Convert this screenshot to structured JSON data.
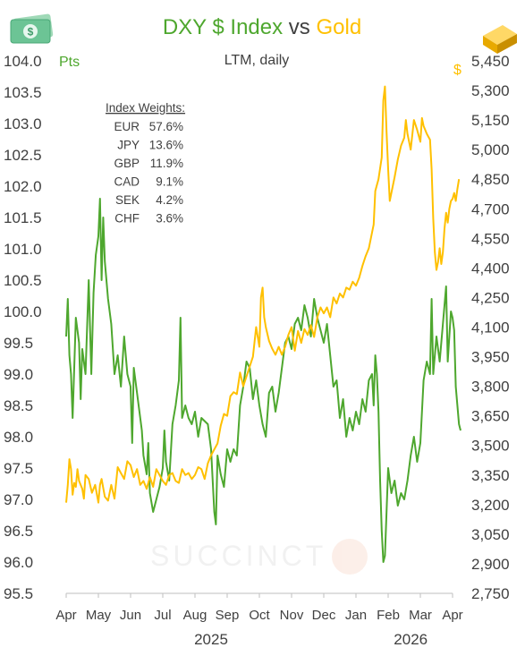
{
  "header": {
    "title_part1": "DXY $ Index",
    "title_vs": "vs",
    "title_part2": "Gold",
    "subtitle": "LTM, daily",
    "left_unit": "Pts",
    "right_unit": "$",
    "watermark": "SUCCINCT",
    "money_icon": "dollar-bill-icon",
    "gold_icon": "gold-bar-icon"
  },
  "weights": {
    "title": "Index Weights:",
    "rows": [
      {
        "ccy": "EUR",
        "pct": "57.6%"
      },
      {
        "ccy": "JPY",
        "pct": "13.6%"
      },
      {
        "ccy": "GBP",
        "pct": "11.9%"
      },
      {
        "ccy": "CAD",
        "pct": "9.1%"
      },
      {
        "ccy": "SEK",
        "pct": "4.2%"
      },
      {
        "ccy": "CHF",
        "pct": "3.6%"
      }
    ]
  },
  "colors": {
    "dxy": "#4ea72e",
    "gold": "#ffc000",
    "text": "#404040",
    "axis": "#bfbfbf"
  },
  "chart_data": {
    "type": "line",
    "title": "DXY $ Index vs Gold",
    "subtitle": "LTM, daily",
    "x_unit": "month index (0 = Apr 2025 … 12 = Apr 2026)",
    "x_ticks": [
      "Apr",
      "May",
      "Jun",
      "Jul",
      "Aug",
      "Sep",
      "Oct",
      "Nov",
      "Dec",
      "Jan",
      "Feb",
      "Mar",
      "Apr"
    ],
    "year_labels": [
      {
        "at": 4.5,
        "label": "2025"
      },
      {
        "at": 10.7,
        "label": "2026"
      }
    ],
    "y_left": {
      "label": "Pts",
      "min": 95.5,
      "max": 104.0,
      "step": 0.5,
      "ticks": [
        "95.5",
        "96.0",
        "96.5",
        "97.0",
        "97.5",
        "98.0",
        "98.5",
        "99.0",
        "99.5",
        "100.0",
        "100.5",
        "101.0",
        "101.5",
        "102.0",
        "102.5",
        "103.0",
        "103.5",
        "104.0"
      ]
    },
    "y_right": {
      "label": "$",
      "min": 2750,
      "max": 5450,
      "step": 150,
      "ticks": [
        "2,750",
        "2,900",
        "3,050",
        "3,200",
        "3,350",
        "3,500",
        "3,650",
        "3,800",
        "3,950",
        "4,100",
        "4,250",
        "4,400",
        "4,550",
        "4,700",
        "4,850",
        "5,000",
        "5,150",
        "5,300",
        "5,450"
      ]
    },
    "series": [
      {
        "name": "DXY $ Index",
        "axis": "left",
        "color": "#4ea72e",
        "points": [
          [
            0.0,
            99.6
          ],
          [
            0.05,
            100.2
          ],
          [
            0.1,
            99.3
          ],
          [
            0.15,
            99.0
          ],
          [
            0.2,
            98.3
          ],
          [
            0.3,
            99.9
          ],
          [
            0.4,
            99.5
          ],
          [
            0.45,
            98.6
          ],
          [
            0.5,
            99.4
          ],
          [
            0.6,
            99.0
          ],
          [
            0.7,
            100.5
          ],
          [
            0.78,
            99.0
          ],
          [
            0.85,
            100.3
          ],
          [
            0.92,
            100.9
          ],
          [
            1.0,
            101.2
          ],
          [
            1.05,
            101.8
          ],
          [
            1.1,
            100.5
          ],
          [
            1.15,
            101.5
          ],
          [
            1.2,
            100.8
          ],
          [
            1.3,
            100.2
          ],
          [
            1.4,
            99.8
          ],
          [
            1.5,
            99.0
          ],
          [
            1.6,
            99.3
          ],
          [
            1.7,
            98.8
          ],
          [
            1.8,
            99.6
          ],
          [
            1.9,
            99.0
          ],
          [
            2.0,
            98.8
          ],
          [
            2.05,
            97.9
          ],
          [
            2.1,
            99.1
          ],
          [
            2.2,
            98.7
          ],
          [
            2.35,
            98.1
          ],
          [
            2.4,
            97.7
          ],
          [
            2.5,
            97.4
          ],
          [
            2.55,
            97.9
          ],
          [
            2.6,
            97.1
          ],
          [
            2.7,
            96.8
          ],
          [
            2.8,
            97.0
          ],
          [
            2.9,
            97.2
          ],
          [
            3.0,
            97.5
          ],
          [
            3.05,
            98.1
          ],
          [
            3.1,
            97.6
          ],
          [
            3.2,
            97.3
          ],
          [
            3.3,
            98.2
          ],
          [
            3.4,
            98.5
          ],
          [
            3.5,
            98.9
          ],
          [
            3.55,
            99.9
          ],
          [
            3.6,
            98.3
          ],
          [
            3.7,
            98.5
          ],
          [
            3.8,
            98.3
          ],
          [
            3.9,
            98.2
          ],
          [
            4.0,
            98.4
          ],
          [
            4.1,
            98.0
          ],
          [
            4.2,
            98.3
          ],
          [
            4.4,
            98.2
          ],
          [
            4.5,
            97.8
          ],
          [
            4.6,
            96.8
          ],
          [
            4.65,
            96.6
          ],
          [
            4.7,
            97.7
          ],
          [
            4.8,
            97.4
          ],
          [
            4.9,
            97.2
          ],
          [
            5.0,
            97.8
          ],
          [
            5.1,
            97.6
          ],
          [
            5.2,
            97.8
          ],
          [
            5.3,
            97.7
          ],
          [
            5.4,
            98.5
          ],
          [
            5.5,
            98.8
          ],
          [
            5.6,
            99.2
          ],
          [
            5.7,
            99.1
          ],
          [
            5.8,
            98.6
          ],
          [
            5.9,
            98.9
          ],
          [
            6.0,
            98.5
          ],
          [
            6.1,
            98.2
          ],
          [
            6.2,
            98.0
          ],
          [
            6.3,
            98.7
          ],
          [
            6.4,
            98.8
          ],
          [
            6.5,
            98.4
          ],
          [
            6.6,
            98.7
          ],
          [
            6.7,
            99.1
          ],
          [
            6.8,
            99.5
          ],
          [
            6.9,
            99.6
          ],
          [
            7.0,
            99.4
          ],
          [
            7.1,
            99.8
          ],
          [
            7.2,
            99.9
          ],
          [
            7.3,
            99.7
          ],
          [
            7.4,
            100.1
          ],
          [
            7.5,
            99.9
          ],
          [
            7.6,
            99.6
          ],
          [
            7.7,
            100.2
          ],
          [
            7.8,
            99.9
          ],
          [
            7.9,
            99.7
          ],
          [
            8.0,
            99.5
          ],
          [
            8.1,
            99.8
          ],
          [
            8.2,
            99.3
          ],
          [
            8.3,
            98.8
          ],
          [
            8.4,
            98.9
          ],
          [
            8.5,
            98.3
          ],
          [
            8.6,
            98.6
          ],
          [
            8.7,
            98.0
          ],
          [
            8.8,
            98.3
          ],
          [
            8.9,
            98.1
          ],
          [
            9.0,
            98.4
          ],
          [
            9.1,
            98.2
          ],
          [
            9.2,
            98.6
          ],
          [
            9.3,
            98.4
          ],
          [
            9.4,
            98.9
          ],
          [
            9.5,
            99.0
          ],
          [
            9.55,
            98.5
          ],
          [
            9.6,
            99.3
          ],
          [
            9.65,
            99.0
          ],
          [
            9.7,
            98.4
          ],
          [
            9.75,
            97.3
          ],
          [
            9.8,
            96.5
          ],
          [
            9.85,
            96.0
          ],
          [
            9.9,
            96.1
          ],
          [
            9.95,
            96.8
          ],
          [
            10.0,
            97.5
          ],
          [
            10.1,
            97.1
          ],
          [
            10.2,
            97.3
          ],
          [
            10.3,
            96.9
          ],
          [
            10.4,
            97.1
          ],
          [
            10.5,
            97.0
          ],
          [
            10.6,
            97.3
          ],
          [
            10.7,
            97.7
          ],
          [
            10.8,
            98.0
          ],
          [
            10.9,
            97.6
          ],
          [
            11.0,
            97.9
          ],
          [
            11.1,
            98.9
          ],
          [
            11.2,
            99.2
          ],
          [
            11.3,
            99.0
          ],
          [
            11.35,
            100.2
          ],
          [
            11.4,
            99.0
          ],
          [
            11.5,
            99.6
          ],
          [
            11.6,
            99.2
          ],
          [
            11.7,
            99.8
          ],
          [
            11.75,
            100.1
          ],
          [
            11.8,
            100.4
          ],
          [
            11.85,
            99.2
          ],
          [
            11.9,
            99.6
          ],
          [
            11.95,
            100.0
          ],
          [
            12.0,
            99.9
          ],
          [
            12.05,
            99.7
          ],
          [
            12.1,
            98.8
          ],
          [
            12.15,
            98.5
          ],
          [
            12.2,
            98.2
          ],
          [
            12.25,
            98.1
          ]
        ]
      },
      {
        "name": "Gold",
        "axis": "right",
        "color": "#ffc000",
        "points": [
          [
            0.0,
            3210
          ],
          [
            0.05,
            3300
          ],
          [
            0.1,
            3430
          ],
          [
            0.15,
            3380
          ],
          [
            0.2,
            3250
          ],
          [
            0.25,
            3310
          ],
          [
            0.3,
            3290
          ],
          [
            0.35,
            3380
          ],
          [
            0.4,
            3320
          ],
          [
            0.5,
            3280
          ],
          [
            0.55,
            3230
          ],
          [
            0.6,
            3350
          ],
          [
            0.7,
            3330
          ],
          [
            0.8,
            3260
          ],
          [
            0.9,
            3300
          ],
          [
            1.0,
            3210
          ],
          [
            1.05,
            3300
          ],
          [
            1.1,
            3330
          ],
          [
            1.2,
            3240
          ],
          [
            1.3,
            3220
          ],
          [
            1.4,
            3300
          ],
          [
            1.5,
            3230
          ],
          [
            1.6,
            3390
          ],
          [
            1.7,
            3360
          ],
          [
            1.8,
            3330
          ],
          [
            1.9,
            3420
          ],
          [
            2.0,
            3400
          ],
          [
            2.1,
            3340
          ],
          [
            2.2,
            3380
          ],
          [
            2.3,
            3300
          ],
          [
            2.4,
            3320
          ],
          [
            2.5,
            3280
          ],
          [
            2.6,
            3340
          ],
          [
            2.7,
            3290
          ],
          [
            2.8,
            3380
          ],
          [
            2.9,
            3350
          ],
          [
            3.0,
            3320
          ],
          [
            3.1,
            3300
          ],
          [
            3.2,
            3350
          ],
          [
            3.3,
            3360
          ],
          [
            3.4,
            3320
          ],
          [
            3.5,
            3310
          ],
          [
            3.6,
            3380
          ],
          [
            3.7,
            3350
          ],
          [
            3.8,
            3360
          ],
          [
            3.9,
            3330
          ],
          [
            4.0,
            3350
          ],
          [
            4.1,
            3390
          ],
          [
            4.2,
            3380
          ],
          [
            4.3,
            3330
          ],
          [
            4.4,
            3410
          ],
          [
            4.5,
            3450
          ],
          [
            4.6,
            3480
          ],
          [
            4.7,
            3510
          ],
          [
            4.8,
            3600
          ],
          [
            4.9,
            3660
          ],
          [
            5.0,
            3650
          ],
          [
            5.1,
            3750
          ],
          [
            5.2,
            3770
          ],
          [
            5.3,
            3760
          ],
          [
            5.4,
            3870
          ],
          [
            5.5,
            3800
          ],
          [
            5.6,
            3850
          ],
          [
            5.7,
            3900
          ],
          [
            5.8,
            3950
          ],
          [
            5.9,
            4100
          ],
          [
            6.0,
            4000
          ],
          [
            6.05,
            4250
          ],
          [
            6.1,
            4300
          ],
          [
            6.15,
            4150
          ],
          [
            6.2,
            4100
          ],
          [
            6.3,
            4030
          ],
          [
            6.4,
            3990
          ],
          [
            6.5,
            3960
          ],
          [
            6.6,
            4000
          ],
          [
            6.7,
            3960
          ],
          [
            6.8,
            4000
          ],
          [
            6.9,
            4060
          ],
          [
            7.0,
            4100
          ],
          [
            7.1,
            3980
          ],
          [
            7.2,
            4080
          ],
          [
            7.3,
            4020
          ],
          [
            7.4,
            4090
          ],
          [
            7.5,
            4060
          ],
          [
            7.6,
            4110
          ],
          [
            7.7,
            4050
          ],
          [
            7.8,
            4150
          ],
          [
            7.9,
            4200
          ],
          [
            8.0,
            4170
          ],
          [
            8.1,
            4200
          ],
          [
            8.2,
            4150
          ],
          [
            8.3,
            4250
          ],
          [
            8.4,
            4220
          ],
          [
            8.5,
            4270
          ],
          [
            8.6,
            4250
          ],
          [
            8.7,
            4300
          ],
          [
            8.8,
            4290
          ],
          [
            8.9,
            4330
          ],
          [
            9.0,
            4310
          ],
          [
            9.1,
            4350
          ],
          [
            9.2,
            4410
          ],
          [
            9.3,
            4460
          ],
          [
            9.4,
            4500
          ],
          [
            9.5,
            4580
          ],
          [
            9.55,
            4620
          ],
          [
            9.6,
            4790
          ],
          [
            9.7,
            4850
          ],
          [
            9.8,
            4960
          ],
          [
            9.85,
            5250
          ],
          [
            9.9,
            5320
          ],
          [
            9.95,
            5090
          ],
          [
            10.0,
            4900
          ],
          [
            10.05,
            4740
          ],
          [
            10.1,
            4780
          ],
          [
            10.2,
            4860
          ],
          [
            10.3,
            4950
          ],
          [
            10.4,
            5020
          ],
          [
            10.5,
            5060
          ],
          [
            10.55,
            5150
          ],
          [
            10.6,
            5080
          ],
          [
            10.7,
            5000
          ],
          [
            10.8,
            5150
          ],
          [
            10.9,
            5100
          ],
          [
            11.0,
            5040
          ],
          [
            11.05,
            5160
          ],
          [
            11.1,
            5120
          ],
          [
            11.2,
            5080
          ],
          [
            11.3,
            5050
          ],
          [
            11.35,
            4900
          ],
          [
            11.4,
            4650
          ],
          [
            11.45,
            4480
          ],
          [
            11.5,
            4390
          ],
          [
            11.55,
            4430
          ],
          [
            11.6,
            4500
          ],
          [
            11.65,
            4420
          ],
          [
            11.7,
            4480
          ],
          [
            11.75,
            4600
          ],
          [
            11.8,
            4680
          ],
          [
            11.85,
            4630
          ],
          [
            11.9,
            4700
          ],
          [
            11.95,
            4740
          ],
          [
            12.0,
            4750
          ],
          [
            12.05,
            4780
          ],
          [
            12.1,
            4740
          ],
          [
            12.15,
            4800
          ],
          [
            12.2,
            4850
          ]
        ]
      }
    ],
    "grid": false,
    "legend": "title-colored"
  }
}
